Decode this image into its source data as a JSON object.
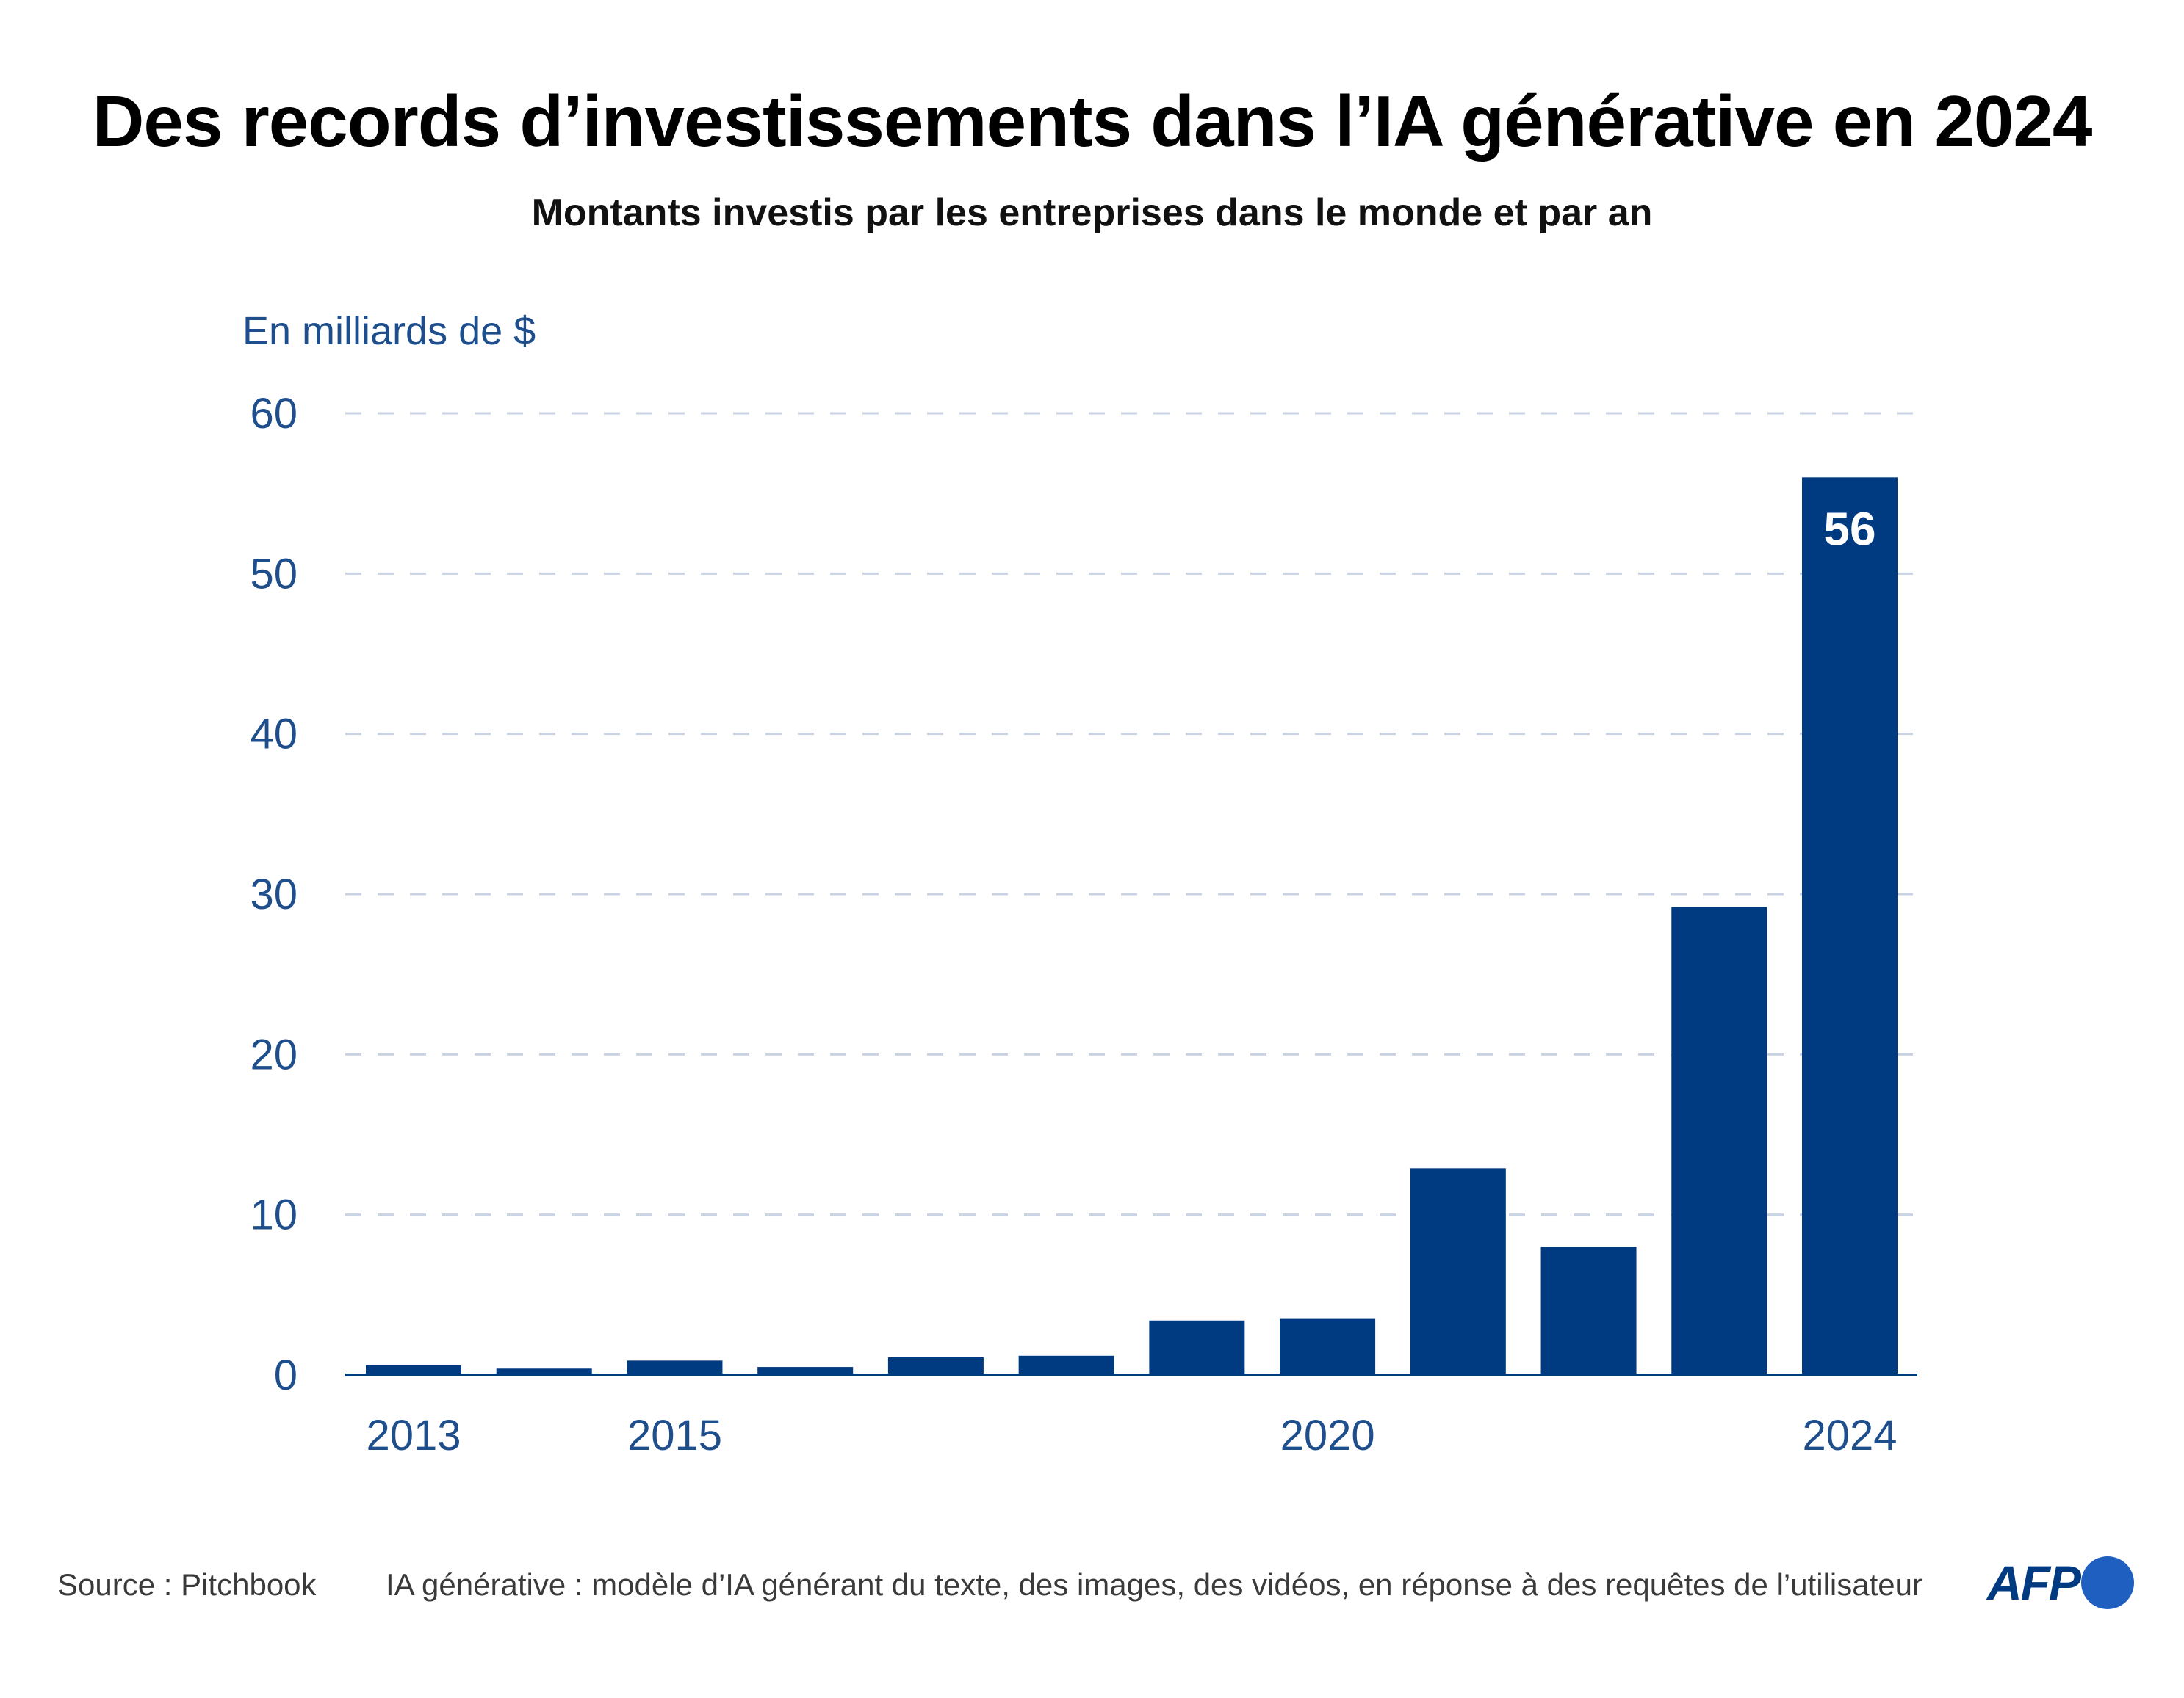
{
  "title": "Des records d’investissements dans l’IA générative en 2024",
  "subtitle": "Montants investis par les entreprises dans le monde et par an",
  "source": "Source : Pitchbook",
  "note": "IA générative : modèle d’IA générant du texte, des images, des vidéos, en réponse à des requêtes de l’utilisateur",
  "logo": "AFP",
  "colors": {
    "bar": "#003a80",
    "axis_text": "#1f4e8c",
    "grid": "#c9d3e3"
  },
  "chart_data": {
    "type": "bar",
    "ylabel": "En milliards de $",
    "categories": [
      "2013",
      "2014",
      "2015",
      "2016",
      "2017",
      "2018",
      "2019",
      "2020",
      "2021",
      "2022",
      "2023",
      "2024"
    ],
    "values": [
      0.6,
      0.4,
      0.9,
      0.5,
      1.1,
      1.2,
      3.4,
      3.5,
      12.9,
      8.0,
      29.2,
      56
    ],
    "x_tick_labels": [
      "2013",
      "",
      "2015",
      "",
      "",
      "",
      "",
      "2020",
      "",
      "",
      "",
      "2024"
    ],
    "y_ticks": [
      0,
      10,
      20,
      30,
      40,
      50,
      60
    ],
    "ylim": [
      0,
      60
    ],
    "data_labels": [
      {
        "category": "2024",
        "text": "56"
      }
    ],
    "grid": true
  }
}
